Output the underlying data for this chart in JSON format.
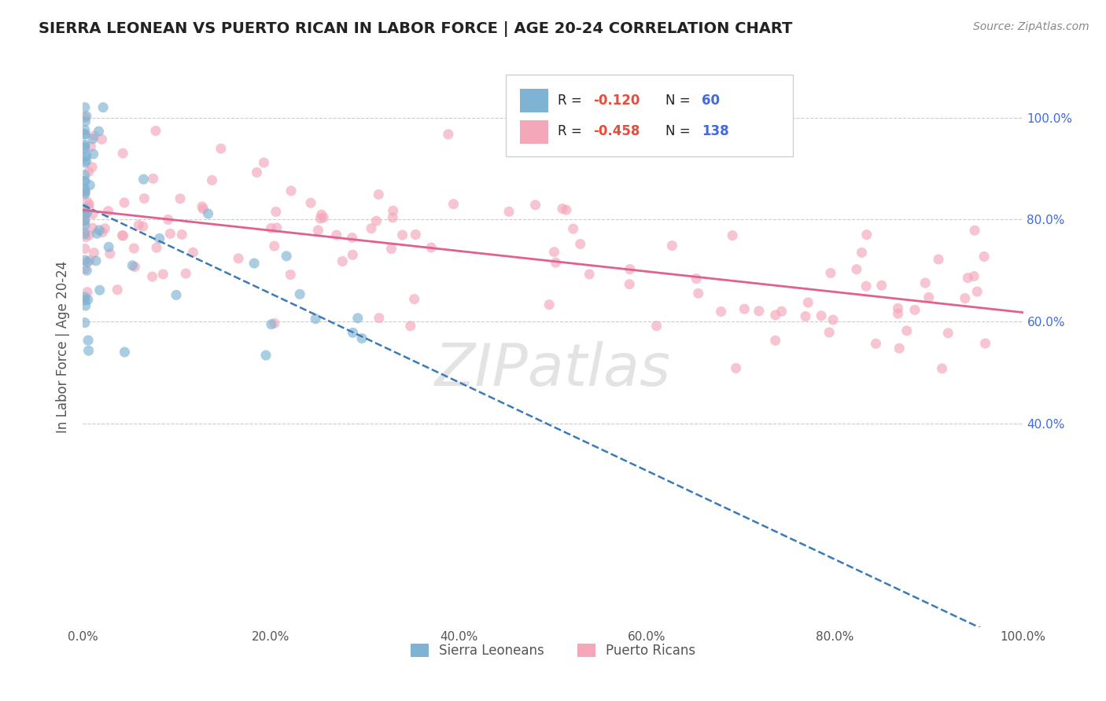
{
  "title": "SIERRA LEONEAN VS PUERTO RICAN IN LABOR FORCE | AGE 20-24 CORRELATION CHART",
  "source": "Source: ZipAtlas.com",
  "ylabel": "In Labor Force | Age 20-24",
  "watermark_text": "ZIPatlas",
  "legend_blue_R": "-0.120",
  "legend_blue_N": "60",
  "legend_pink_R": "-0.458",
  "legend_pink_N": "138",
  "blue_color": "#7fb3d3",
  "pink_color": "#f4a7b9",
  "blue_line_color": "#3a7ab8",
  "pink_line_color": "#e06090",
  "watermark_color": "#d8d8d8",
  "grid_color": "#cccccc",
  "title_color": "#222222",
  "axis_label_color": "#555555",
  "right_tick_color": "#4169E1",
  "legend_R_color": "#e74c3c",
  "legend_N_color": "#4169E1",
  "xlim": [
    0.0,
    1.0
  ],
  "ylim": [
    0.0,
    1.1
  ],
  "xticks": [
    0.0,
    0.2,
    0.4,
    0.6,
    0.8,
    1.0
  ],
  "xticklabels": [
    "0.0%",
    "20.0%",
    "40.0%",
    "60.0%",
    "80.0%",
    "100.0%"
  ],
  "right_yticks": [
    0.4,
    0.6,
    0.8,
    1.0
  ],
  "right_yticklabels": [
    "40.0%",
    "60.0%",
    "80.0%",
    "100.0%"
  ],
  "sl_intercept": 0.835,
  "sl_slope": -0.8,
  "pr_intercept": 0.83,
  "pr_slope": -0.22
}
